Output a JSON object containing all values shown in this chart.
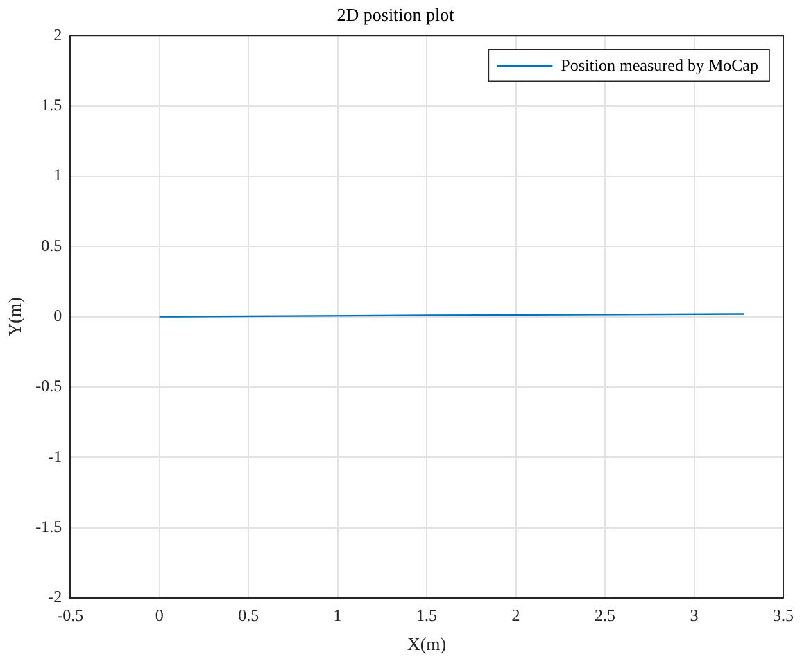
{
  "chart_data": {
    "type": "line",
    "title": "2D position plot",
    "xlabel": "X(m)",
    "ylabel": "Y(m)",
    "series": [
      {
        "name": "Position measured by MoCap",
        "color": "#0072bd",
        "x": [
          0,
          1.5,
          3.28
        ],
        "values": [
          0,
          0.01,
          0.02
        ]
      }
    ],
    "xlim": [
      -0.5,
      3.5
    ],
    "xticks": [
      -0.5,
      0,
      0.5,
      1,
      1.5,
      2,
      2.5,
      3,
      3.5
    ],
    "ylim": [
      -2,
      2
    ],
    "yticks": [
      -2,
      -1.5,
      -1,
      -0.5,
      0,
      0.5,
      1,
      1.5,
      2
    ],
    "grid": true,
    "legend": "top right",
    "marker": "none",
    "line_style": "solid"
  }
}
